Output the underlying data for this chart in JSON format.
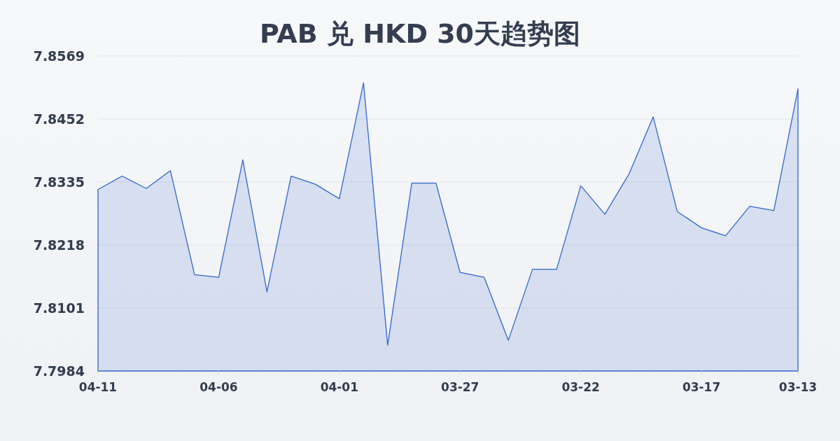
{
  "chart_data": {
    "type": "area",
    "title": "PAB 兑 HKD 30天趋势图",
    "categories": [
      "04-11",
      null,
      null,
      null,
      null,
      "04-06",
      null,
      null,
      null,
      null,
      "04-01",
      null,
      null,
      null,
      null,
      "03-27",
      null,
      null,
      null,
      null,
      "03-22",
      null,
      null,
      null,
      null,
      "03-17",
      null,
      null,
      null,
      "03-13"
    ],
    "values": [
      7.8321,
      7.8346,
      7.8323,
      7.8356,
      7.8163,
      7.8158,
      7.8376,
      7.8131,
      7.8346,
      7.8331,
      7.8304,
      7.8519,
      7.8032,
      7.8333,
      7.8333,
      7.8167,
      7.8158,
      7.8041,
      7.8173,
      7.8173,
      7.8328,
      7.8275,
      7.835,
      7.8456,
      7.828,
      7.825,
      7.8235,
      7.829,
      7.8282,
      7.8508
    ],
    "color": "#3366cc",
    "ylim": [
      7.7984,
      7.8569
    ],
    "yticks": [
      7.7984,
      7.8101,
      7.8218,
      7.8335,
      7.8452,
      7.8569
    ],
    "grid": "y"
  }
}
